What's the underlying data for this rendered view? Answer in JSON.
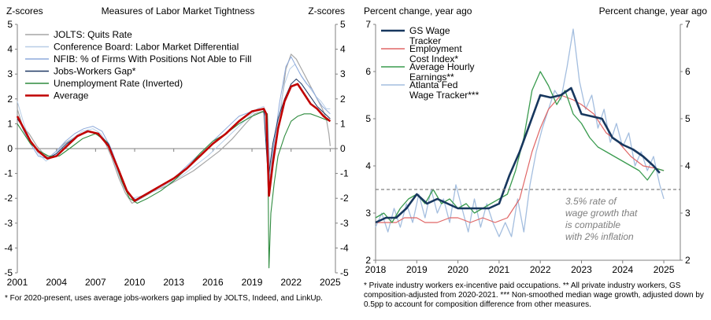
{
  "chart_data": [
    {
      "type": "line",
      "title": "Measures of Labor Market Tightness",
      "ylabel_left": "Z-scores",
      "ylabel_right": "Z-scores",
      "ylim": [
        -5,
        5
      ],
      "yticks": [
        "5",
        "4",
        "3",
        "2",
        "1",
        "0",
        "-1",
        "-2",
        "-3",
        "-4",
        "-5"
      ],
      "xlim": [
        2001,
        2025.4
      ],
      "xticks": [
        "2001",
        "2004",
        "2007",
        "2010",
        "2013",
        "2016",
        "2019",
        "2022",
        "2025"
      ],
      "legend": [
        "JOLTS: Quits Rate",
        "Conference Board: Labor Market Differential",
        "NFIB: % of Firms With Positions Not Able to Fill",
        "Jobs-Workers Gap*",
        "Unemployment Rate (Inverted)",
        "Average"
      ],
      "series": [
        {
          "name": "JOLTS: Quits Rate",
          "color": "#a6a6a6",
          "width": 1.2,
          "x": [
            2001,
            2001.4,
            2001.9,
            2002.5,
            2003,
            2003.5,
            2004,
            2004.6,
            2005.2,
            2006,
            2006.6,
            2007,
            2007.6,
            2008.2,
            2008.8,
            2009.3,
            2009.8,
            2010.5,
            2011.5,
            2012.5,
            2013.5,
            2014.5,
            2015.5,
            2016.5,
            2017.5,
            2018.5,
            2019.2,
            2019.8,
            2020.1,
            2020.25,
            2020.5,
            2020.8,
            2021.2,
            2021.6,
            2022.0,
            2022.4,
            2022.8,
            2023.2,
            2023.6,
            2024.0,
            2024.4,
            2024.7,
            2024.9,
            2025.0
          ],
          "y": [
            1.6,
            0.9,
            0.6,
            0.1,
            -0.2,
            -0.4,
            -0.2,
            0.2,
            0.4,
            0.6,
            0.7,
            0.6,
            0.4,
            -0.3,
            -1.2,
            -1.8,
            -2.2,
            -2.0,
            -1.7,
            -1.5,
            -1.2,
            -0.9,
            -0.5,
            -0.1,
            0.4,
            1.0,
            1.4,
            1.5,
            1.3,
            -1.8,
            -0.4,
            0.6,
            1.6,
            3.2,
            3.8,
            3.6,
            3.2,
            2.8,
            2.4,
            2.0,
            1.6,
            1.2,
            0.6,
            0.1
          ]
        },
        {
          "name": "Conference Board: Labor Market Differential",
          "color": "#b7cde6",
          "width": 1.0,
          "x": [
            2001,
            2001.5,
            2002,
            2002.6,
            2003.2,
            2003.8,
            2004.5,
            2005.2,
            2006,
            2006.8,
            2007.4,
            2008,
            2008.6,
            2009.2,
            2009.8,
            2010.6,
            2011.6,
            2012.6,
            2013.6,
            2014.6,
            2015.6,
            2016.6,
            2017.6,
            2018.6,
            2019.4,
            2019.9,
            2020.2,
            2020.4,
            2020.7,
            2021.1,
            2021.5,
            2021.9,
            2022.3,
            2022.7,
            2023.1,
            2023.5,
            2023.9,
            2024.3,
            2024.7,
            2025.0
          ],
          "y": [
            1.9,
            1.0,
            0.3,
            -0.2,
            -0.5,
            -0.3,
            0.1,
            0.4,
            0.7,
            0.8,
            0.6,
            0.1,
            -0.8,
            -1.6,
            -2.0,
            -1.9,
            -1.7,
            -1.4,
            -1.1,
            -0.7,
            -0.3,
            0.2,
            0.7,
            1.2,
            1.6,
            1.7,
            1.3,
            -1.0,
            0.3,
            1.4,
            2.6,
            3.2,
            3.4,
            3.0,
            2.7,
            2.4,
            2.1,
            1.9,
            1.6,
            1.6
          ]
        },
        {
          "name": "NFIB: % of Firms With Positions Not Able to Fill",
          "color": "#8eaadb",
          "width": 1.0,
          "x": [
            2001,
            2001.5,
            2002,
            2002.6,
            2003.3,
            2004,
            2004.7,
            2005.4,
            2006.1,
            2006.8,
            2007.5,
            2008.2,
            2008.9,
            2009.5,
            2010.2,
            2011,
            2012,
            2013,
            2014,
            2015,
            2016,
            2017,
            2018,
            2019,
            2019.8,
            2020.2,
            2020.35,
            2020.7,
            2021.1,
            2021.6,
            2022.0,
            2022.4,
            2022.8,
            2023.2,
            2023.6,
            2024.0,
            2024.4,
            2024.8,
            2025.0
          ],
          "y": [
            1.3,
            0.7,
            0.2,
            -0.3,
            -0.4,
            -0.1,
            0.3,
            0.6,
            0.8,
            0.9,
            0.7,
            0.0,
            -1.0,
            -1.8,
            -2.1,
            -1.8,
            -1.5,
            -1.2,
            -0.7,
            -0.2,
            0.3,
            0.8,
            1.3,
            1.5,
            1.6,
            1.2,
            -1.5,
            0.2,
            1.8,
            3.3,
            3.7,
            3.3,
            2.9,
            2.6,
            2.4,
            2.0,
            1.7,
            1.5,
            1.4
          ]
        },
        {
          "name": "Jobs-Workers Gap*",
          "color": "#1f3864",
          "width": 1.0,
          "x": [
            2001,
            2001.5,
            2002,
            2002.6,
            2003.3,
            2004,
            2004.8,
            2005.6,
            2006.4,
            2007.2,
            2008,
            2008.8,
            2009.4,
            2010,
            2011,
            2012,
            2013,
            2014,
            2015,
            2016,
            2017,
            2018,
            2019,
            2019.9,
            2020.25,
            2020.6,
            2021,
            2021.5,
            2022,
            2022.4,
            2022.8,
            2023.2,
            2023.6,
            2024.0,
            2024.4,
            2024.8,
            2025.0
          ],
          "y": [
            1.2,
            0.8,
            0.3,
            -0.1,
            -0.4,
            -0.2,
            0.2,
            0.5,
            0.7,
            0.6,
            0.2,
            -0.9,
            -1.7,
            -2.1,
            -1.8,
            -1.5,
            -1.2,
            -0.8,
            -0.3,
            0.2,
            0.6,
            1.1,
            1.5,
            1.6,
            -1.2,
            0.2,
            1.2,
            2.0,
            2.6,
            2.8,
            2.6,
            2.3,
            2.0,
            1.7,
            1.5,
            1.3,
            1.2
          ]
        },
        {
          "name": "Unemployment Rate (Inverted)",
          "color": "#2e8b3e",
          "width": 1.1,
          "x": [
            2001,
            2001.5,
            2002,
            2002.7,
            2003.4,
            2004.2,
            2005,
            2006,
            2007,
            2007.8,
            2008.4,
            2009,
            2009.6,
            2010.2,
            2011,
            2012,
            2013,
            2014,
            2015,
            2016,
            2017,
            2018,
            2019,
            2019.9,
            2020.18,
            2020.3,
            2020.45,
            2020.7,
            2021,
            2021.5,
            2022,
            2022.5,
            2023,
            2023.5,
            2024,
            2024.5,
            2025.0
          ],
          "y": [
            1.0,
            0.6,
            0.2,
            -0.1,
            -0.3,
            -0.3,
            0.0,
            0.4,
            0.6,
            0.3,
            -0.4,
            -1.3,
            -2.0,
            -2.2,
            -2.0,
            -1.7,
            -1.3,
            -0.8,
            -0.2,
            0.3,
            0.6,
            1.0,
            1.3,
            1.5,
            1.4,
            -4.8,
            -2.6,
            -1.4,
            -0.3,
            0.5,
            1.1,
            1.3,
            1.4,
            1.4,
            1.3,
            1.2,
            1.1
          ]
        },
        {
          "name": "Average",
          "color": "#c00000",
          "width": 2.6,
          "x": [
            2001,
            2001.5,
            2002,
            2002.6,
            2003.3,
            2004,
            2004.8,
            2005.6,
            2006.4,
            2007.2,
            2008,
            2008.8,
            2009.4,
            2010,
            2011,
            2012,
            2013,
            2014,
            2015,
            2016,
            2017,
            2018,
            2019,
            2019.9,
            2020.1,
            2020.3,
            2020.6,
            2021,
            2021.5,
            2022,
            2022.5,
            2023,
            2023.5,
            2024,
            2024.5,
            2025.0
          ],
          "y": [
            1.3,
            0.8,
            0.3,
            -0.1,
            -0.4,
            -0.3,
            0.1,
            0.5,
            0.7,
            0.6,
            0.1,
            -0.9,
            -1.7,
            -2.1,
            -1.8,
            -1.5,
            -1.2,
            -0.8,
            -0.3,
            0.2,
            0.6,
            1.1,
            1.5,
            1.6,
            1.4,
            -1.9,
            -0.6,
            0.8,
            1.9,
            2.5,
            2.6,
            2.2,
            1.8,
            1.6,
            1.3,
            1.1
          ]
        }
      ],
      "footnote": "* For 2020-present, uses average jobs-workers gap implied by JOLTS, Indeed, and LinkUp."
    },
    {
      "type": "line",
      "ylabel_left": "Percent change, year ago",
      "ylabel_right": "Percent change, year ago",
      "ylim": [
        2,
        7
      ],
      "yticks": [
        "7",
        "6",
        "5",
        "4",
        "3",
        "2"
      ],
      "xlim": [
        2018,
        2025.4
      ],
      "xticks": [
        "2018",
        "2019",
        "2020",
        "2021",
        "2022",
        "2023",
        "2024",
        "2025"
      ],
      "legend": [
        "GS Wage Tracker",
        "Employment Cost Index*",
        "Average Hourly Earnings**",
        "Atlanta Fed Wage Tracker***"
      ],
      "reference_line": {
        "y": 3.5,
        "label": "3.5% rate of wage growth that is compatible with 2% inflation"
      },
      "series": [
        {
          "name": "Atlanta Fed Wage Tracker***",
          "color": "#a4bedf",
          "width": 1.3,
          "x": [
            2018,
            2018.15,
            2018.3,
            2018.45,
            2018.6,
            2018.75,
            2018.9,
            2019.05,
            2019.2,
            2019.35,
            2019.5,
            2019.65,
            2019.8,
            2019.95,
            2020.1,
            2020.25,
            2020.4,
            2020.55,
            2020.7,
            2020.85,
            2021.0,
            2021.15,
            2021.3,
            2021.45,
            2021.6,
            2021.75,
            2021.9,
            2022.05,
            2022.2,
            2022.35,
            2022.5,
            2022.65,
            2022.8,
            2022.95,
            2023.1,
            2023.25,
            2023.4,
            2023.55,
            2023.7,
            2023.85,
            2024.0,
            2024.15,
            2024.3,
            2024.45,
            2024.6,
            2024.75,
            2024.9,
            2025.0
          ],
          "y": [
            2.7,
            3.0,
            2.6,
            3.1,
            2.7,
            3.2,
            2.8,
            3.4,
            2.9,
            3.5,
            3.0,
            3.3,
            2.8,
            3.6,
            3.1,
            2.6,
            3.3,
            2.7,
            3.2,
            2.8,
            2.5,
            2.8,
            2.5,
            3.3,
            2.6,
            3.6,
            4.3,
            4.8,
            5.2,
            5.6,
            5.4,
            6.1,
            6.9,
            5.8,
            5.2,
            5.5,
            4.8,
            5.2,
            4.5,
            4.9,
            4.4,
            4.7,
            4.0,
            4.3,
            3.9,
            4.2,
            3.6,
            3.3
          ]
        },
        {
          "name": "Employment Cost Index*",
          "color": "#e06666",
          "width": 1.2,
          "x": [
            2018,
            2018.5,
            2018.7,
            2019.0,
            2019.2,
            2019.5,
            2019.8,
            2020.0,
            2020.3,
            2020.6,
            2020.9,
            2021.2,
            2021.5,
            2021.8,
            2022.0,
            2022.2,
            2022.5,
            2022.8,
            2023.0,
            2023.3,
            2023.6,
            2023.9,
            2024.2,
            2024.5,
            2024.8,
            2025.0
          ],
          "y": [
            2.8,
            2.8,
            2.9,
            2.9,
            2.8,
            2.8,
            2.9,
            2.9,
            2.8,
            2.9,
            2.8,
            2.9,
            3.3,
            4.3,
            4.8,
            5.2,
            5.5,
            5.4,
            5.3,
            5.1,
            4.7,
            4.5,
            4.2,
            4.0,
            3.95,
            3.9
          ]
        },
        {
          "name": "Average Hourly Earnings**",
          "color": "#3a9b4f",
          "width": 1.3,
          "x": [
            2018,
            2018.2,
            2018.4,
            2018.6,
            2018.8,
            2019.0,
            2019.2,
            2019.4,
            2019.6,
            2019.8,
            2020.0,
            2020.2,
            2020.4,
            2020.6,
            2020.8,
            2021.0,
            2021.2,
            2021.4,
            2021.6,
            2021.8,
            2022.0,
            2022.2,
            2022.4,
            2022.6,
            2022.8,
            2023.0,
            2023.2,
            2023.4,
            2023.6,
            2023.8,
            2024.0,
            2024.2,
            2024.4,
            2024.6,
            2024.8,
            2025.0
          ],
          "y": [
            2.9,
            3.0,
            2.8,
            3.1,
            3.3,
            3.4,
            3.2,
            3.5,
            3.2,
            3.3,
            3.1,
            3.2,
            3.0,
            3.1,
            3.2,
            3.3,
            3.4,
            3.9,
            4.6,
            5.6,
            6.0,
            5.7,
            5.3,
            5.6,
            5.1,
            4.9,
            4.6,
            4.4,
            4.3,
            4.2,
            4.1,
            4.0,
            3.9,
            3.7,
            3.95,
            3.9
          ]
        },
        {
          "name": "GS Wage Tracker",
          "color": "#17375e",
          "width": 2.6,
          "x": [
            2018,
            2018.25,
            2018.5,
            2018.75,
            2019.0,
            2019.25,
            2019.5,
            2019.75,
            2020.0,
            2020.25,
            2020.5,
            2020.75,
            2021.0,
            2021.25,
            2021.5,
            2021.75,
            2022.0,
            2022.25,
            2022.5,
            2022.75,
            2023.0,
            2023.25,
            2023.5,
            2023.75,
            2024.0,
            2024.25,
            2024.5,
            2024.75,
            2024.9
          ],
          "y": [
            2.8,
            2.9,
            2.9,
            3.1,
            3.4,
            3.2,
            3.3,
            3.2,
            3.1,
            3.1,
            3.1,
            3.1,
            3.2,
            3.8,
            4.3,
            4.9,
            5.5,
            5.45,
            5.5,
            5.65,
            5.1,
            5.05,
            5.0,
            4.6,
            4.45,
            4.35,
            4.2,
            4.0,
            3.85
          ]
        }
      ],
      "footnote": "* Private industry workers ex-incentive paid occupations. ** All private industry workers, GS composition-adjusted from 2020-2021. *** Non-smoothed median wage growth, adjusted down by 0.5pp to account for composition difference from other measures."
    }
  ]
}
